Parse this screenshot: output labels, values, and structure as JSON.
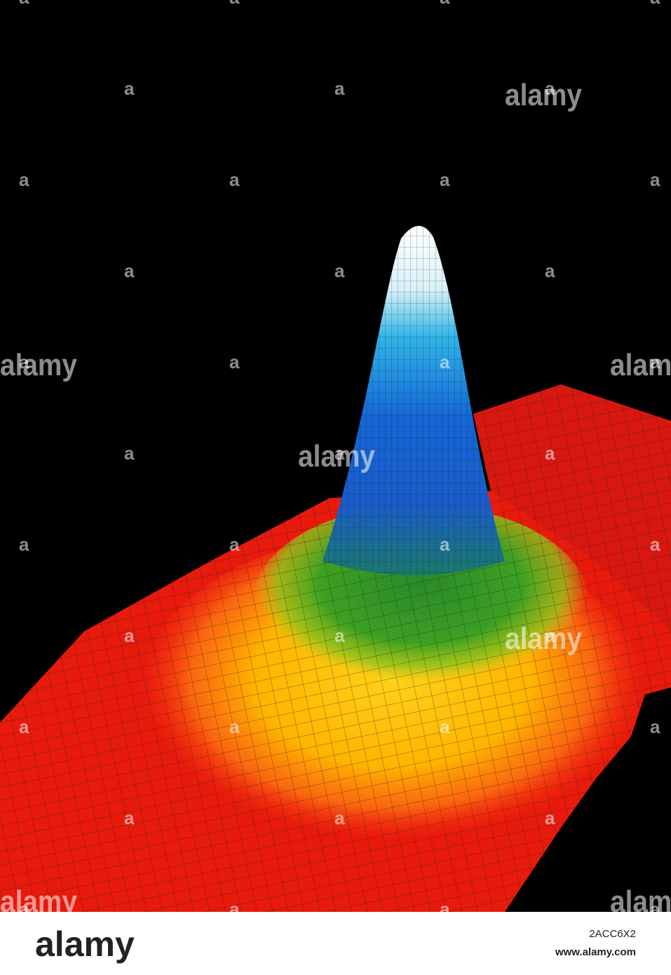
{
  "watermark": {
    "word": "alamy",
    "letter": "a"
  },
  "footer": {
    "logo": "alamy",
    "image_id": "2ACC6X2",
    "url": "www.alamy.com"
  }
}
